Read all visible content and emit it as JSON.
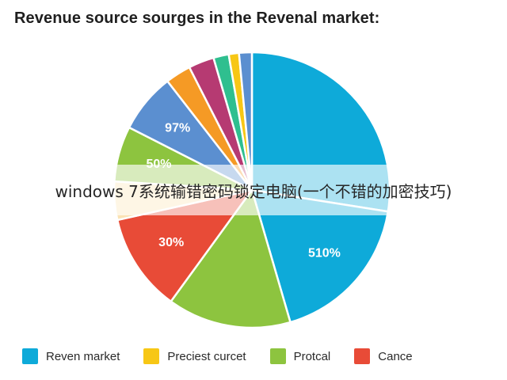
{
  "chart_data": {
    "type": "pie",
    "title": "Revenue source sourges in the Revenal market:",
    "slices": [
      {
        "value": 27.5,
        "color": "#0eaad9",
        "label": ""
      },
      {
        "value": 18.0,
        "color": "#0eaad9",
        "label": "510%"
      },
      {
        "value": 14.5,
        "color": "#8dc43f",
        "label": ""
      },
      {
        "value": 11.5,
        "color": "#e84b37",
        "label": "30%"
      },
      {
        "value": 4.5,
        "color": "#fbe3b4",
        "label": ""
      },
      {
        "value": 6.5,
        "color": "#8dc43f",
        "label": "50%"
      },
      {
        "value": 7.0,
        "color": "#5b8fd0",
        "label": "97%"
      },
      {
        "value": 3.0,
        "color": "#f59a25",
        "label": ""
      },
      {
        "value": 3.0,
        "color": "#b63a72",
        "label": ""
      },
      {
        "value": 1.8,
        "color": "#2fbf8f",
        "label": ""
      },
      {
        "value": 1.2,
        "color": "#f7c715",
        "label": ""
      },
      {
        "value": 1.5,
        "color": "#5b8fd0",
        "label": ""
      }
    ],
    "legend": [
      {
        "label": "Reven market",
        "color": "#0eaad9"
      },
      {
        "label": "Preciest curcet",
        "color": "#f7c715"
      },
      {
        "label": "Protcal",
        "color": "#8dc43f"
      },
      {
        "label": "Cance",
        "color": "#e84b37"
      }
    ],
    "legend_position": "bottom"
  },
  "overlay": {
    "text": "windows 7系统输错密码锁定电脑(一个不错的加密技巧)"
  }
}
